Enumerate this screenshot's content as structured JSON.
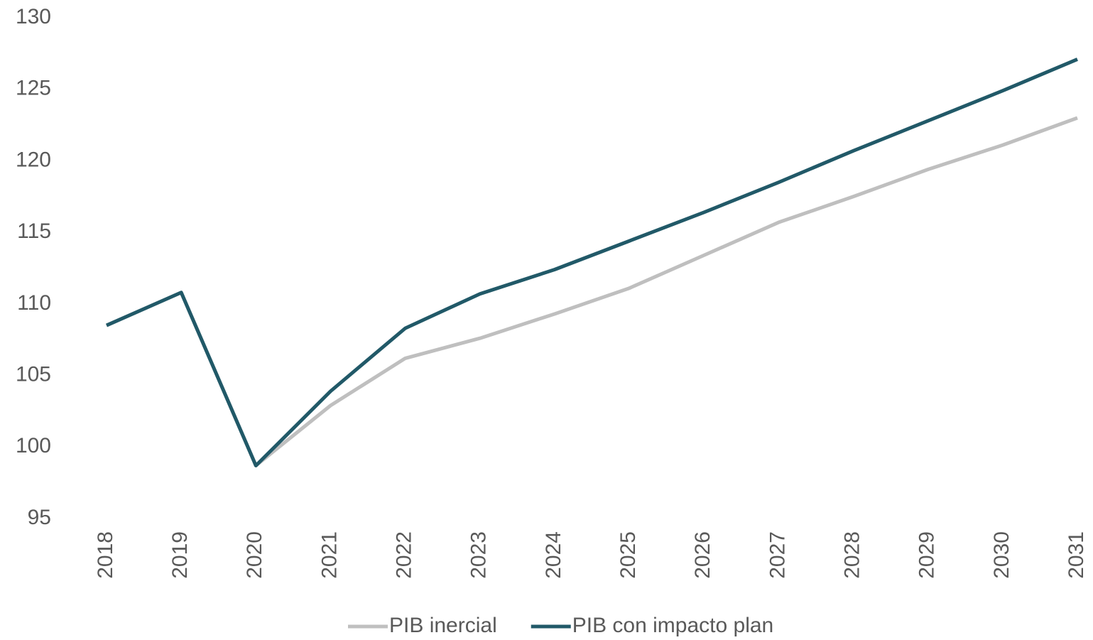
{
  "chart_data": {
    "type": "line",
    "categories": [
      "2018",
      "2019",
      "2020",
      "2021",
      "2022",
      "2023",
      "2024",
      "2025",
      "2026",
      "2027",
      "2028",
      "2029",
      "2030",
      "2031"
    ],
    "series": [
      {
        "name": "PIB inercial",
        "color": "#bfbfbf",
        "values": [
          108.5,
          110.8,
          98.7,
          102.9,
          106.2,
          107.6,
          109.3,
          111.1,
          113.4,
          115.7,
          117.5,
          119.4,
          121.1,
          123.0
        ]
      },
      {
        "name": "PIB con impacto plan",
        "color": "#215968",
        "values": [
          108.5,
          110.8,
          98.7,
          103.9,
          108.3,
          110.7,
          112.4,
          114.4,
          116.4,
          118.5,
          120.7,
          122.8,
          124.9,
          127.1
        ]
      }
    ],
    "ylim": [
      95,
      130
    ],
    "yticks": [
      95,
      100,
      105,
      110,
      115,
      120,
      125,
      130
    ],
    "grid": false,
    "legend": "bottom"
  }
}
